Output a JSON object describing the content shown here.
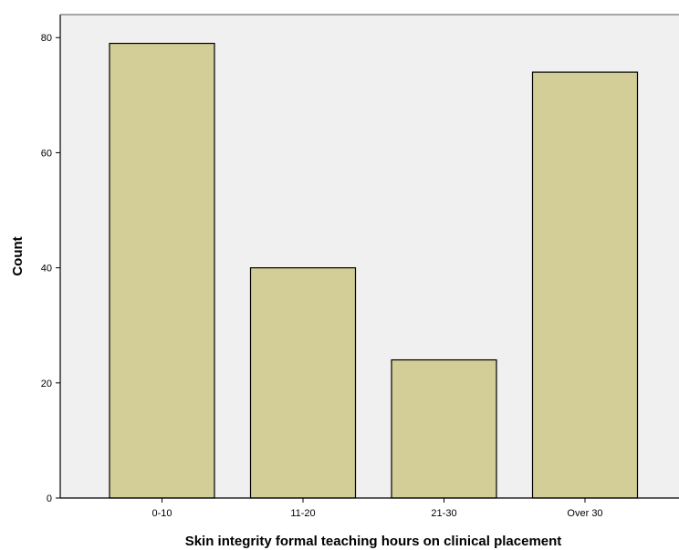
{
  "chart_data": {
    "type": "bar",
    "categories": [
      "0-10",
      "11-20",
      "21-30",
      "Over 30"
    ],
    "values": [
      79,
      40,
      24,
      74
    ],
    "xlabel": "Skin integrity formal teaching hours on clinical placement",
    "ylabel": "Count",
    "ylim": [
      0,
      84
    ],
    "yticks": [
      "0",
      "20",
      "40",
      "60",
      "80"
    ],
    "grid": false,
    "colors": {
      "plot_background": "#f0f0f0",
      "bar_fill": "#d3ce97",
      "bar_stroke": "#000000",
      "axis": "#000000"
    }
  }
}
